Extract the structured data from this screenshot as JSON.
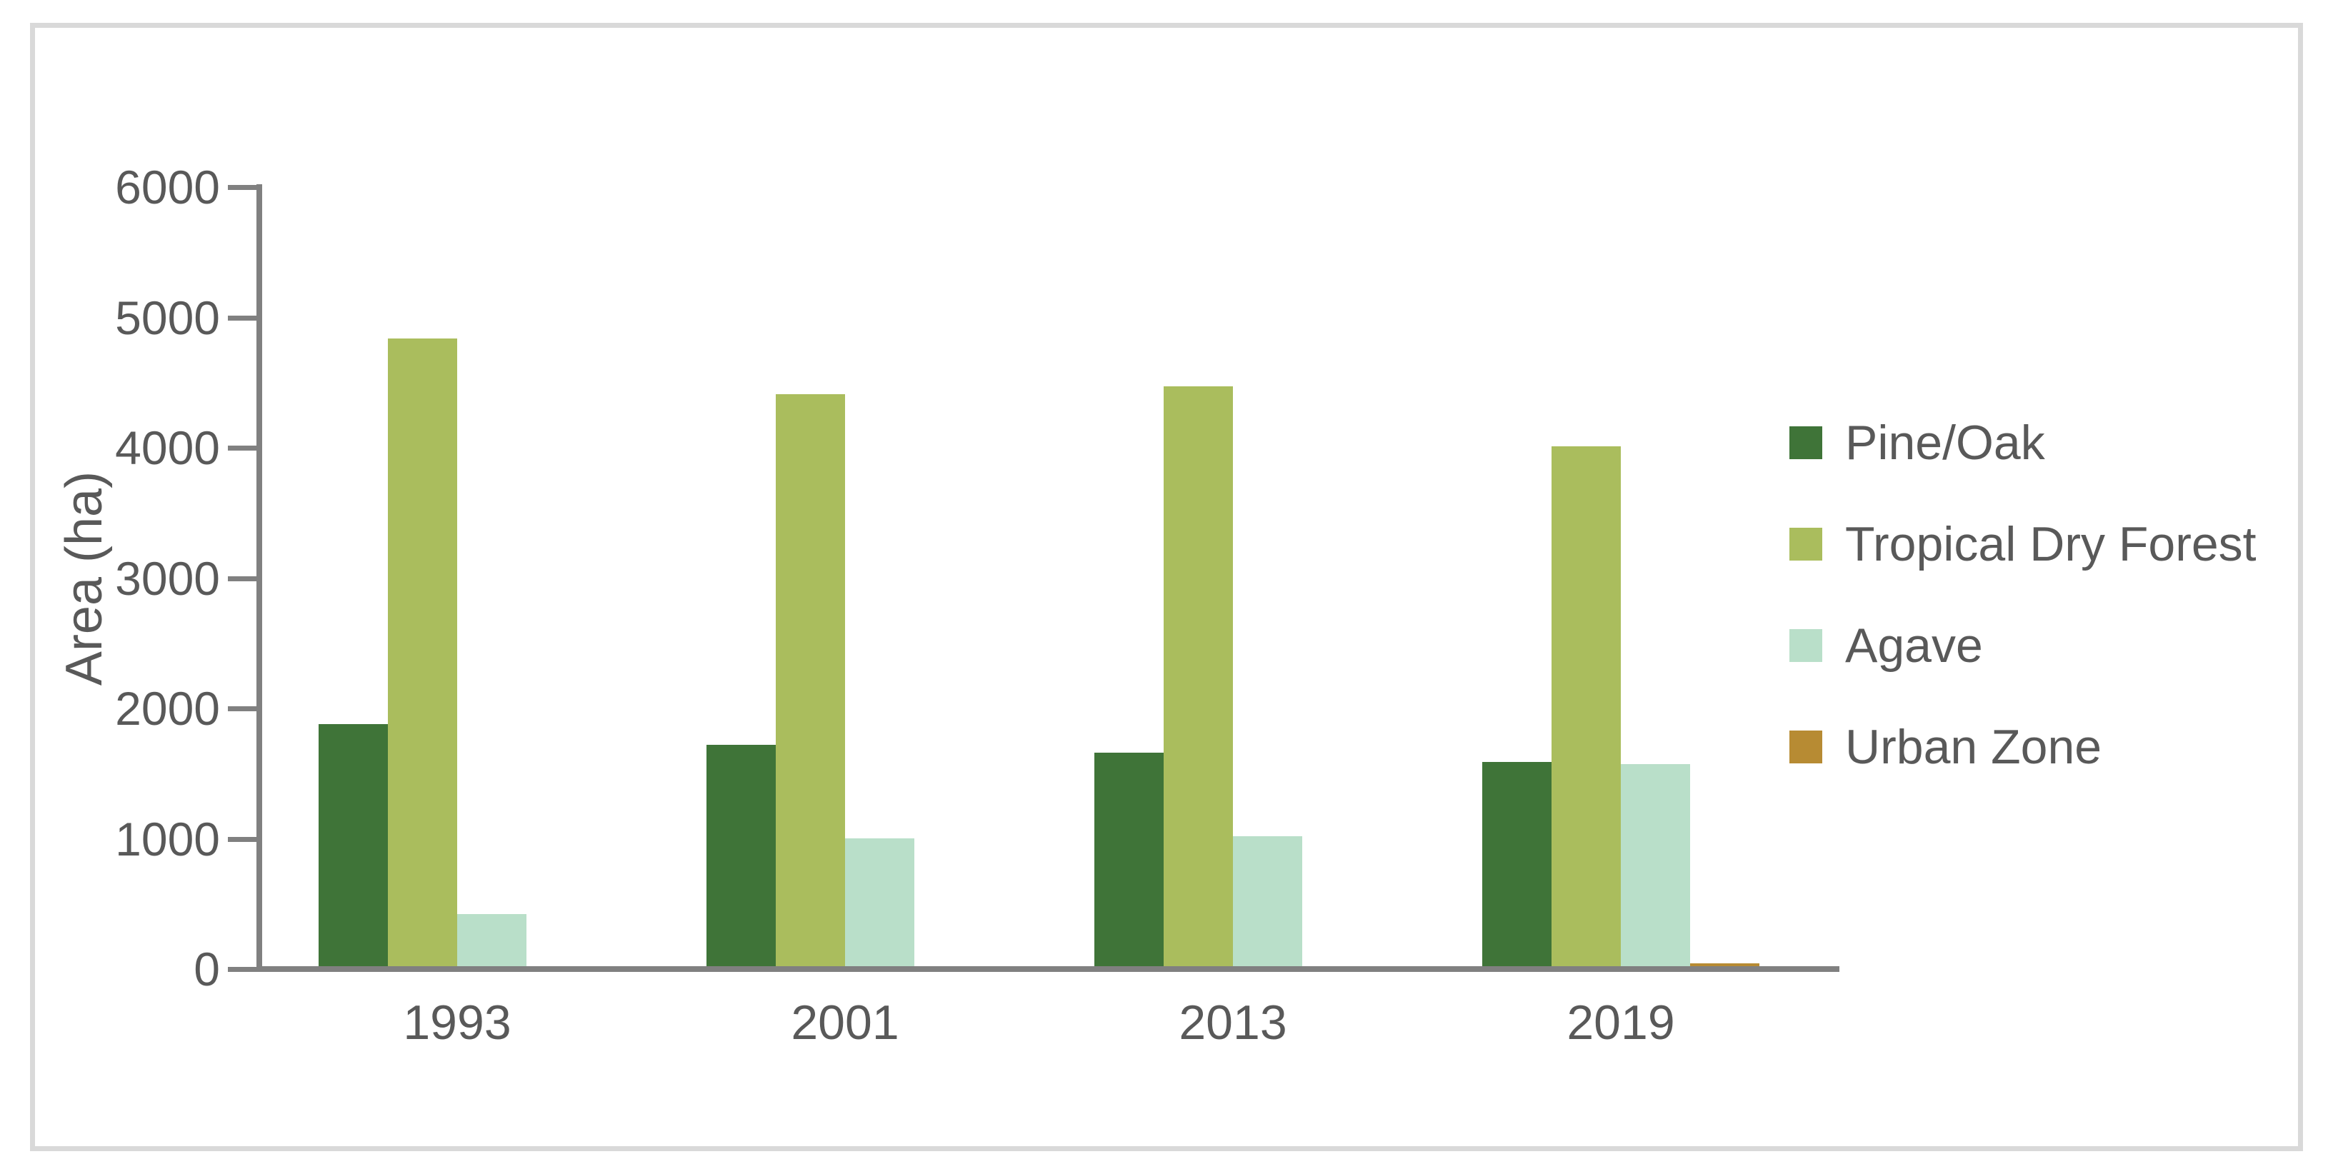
{
  "figure": {
    "background": "#FFFFFF",
    "border_color": "#D9D9D9",
    "axis_color": "#808080",
    "text_color": "#595959"
  },
  "chart_data": {
    "type": "bar",
    "title": "",
    "categories": [
      "1993",
      "2001",
      "2013",
      "2019"
    ],
    "series": [
      {
        "name": "Pine/Oak",
        "color": "#3F7438",
        "values": [
          1880,
          1720,
          1660,
          1590
        ]
      },
      {
        "name": "Tropical Dry Forest",
        "color": "#AABD5D",
        "values": [
          4840,
          4410,
          4470,
          4010
        ]
      },
      {
        "name": "Agave",
        "color": "#B9DFC9",
        "values": [
          420,
          1000,
          1020,
          1570
        ]
      },
      {
        "name": "Urban Zone",
        "color": "#B78B33",
        "values": [
          0,
          0,
          0,
          45
        ]
      }
    ],
    "xlabel": "",
    "ylabel": "Area (ha)",
    "ylim": [
      0,
      6000
    ],
    "ytick_step": 1000,
    "yticks": [
      "0",
      "1000",
      "2000",
      "3000",
      "4000",
      "5000",
      "6000"
    ],
    "grid": false,
    "legend_position": "right"
  }
}
